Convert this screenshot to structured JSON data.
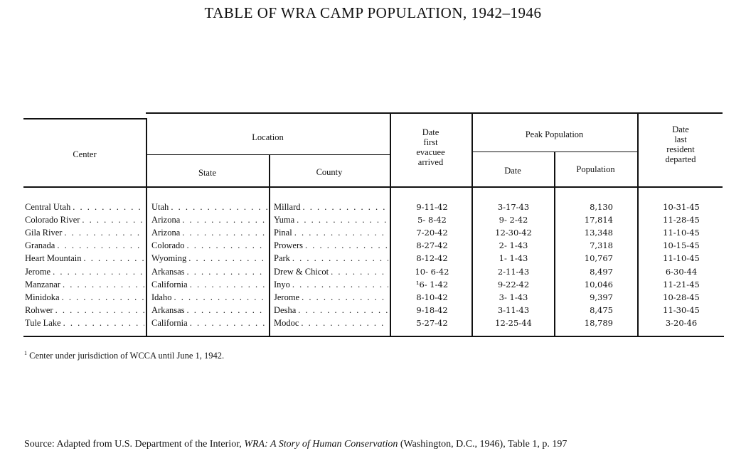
{
  "document": {
    "title": "TABLE OF WRA CAMP POPULATION, 1942–1946"
  },
  "table": {
    "headers": {
      "center": "Center",
      "location": "Location",
      "state": "State",
      "county": "County",
      "date_first_line1": "Date",
      "date_first_line2": "first",
      "date_first_line3": "evacuee",
      "date_first_line4": "arrived",
      "peak_population": "Peak Population",
      "peak_date": "Date",
      "peak_pop": "Population",
      "date_last_line1": "Date",
      "date_last_line2": "last",
      "date_last_line3": "resident",
      "date_last_line4": "departed"
    },
    "rows": [
      {
        "center": "Central Utah",
        "state": "Utah",
        "county": "Millard",
        "first": "9-11-42",
        "peak_date": "3-17-43",
        "peak_pop": "8,130",
        "last": "10-31-45"
      },
      {
        "center": "Colorado River",
        "state": "Arizona",
        "county": "Yuma",
        "first": "5- 8-42",
        "peak_date": "9- 2-42",
        "peak_pop": "17,814",
        "last": "11-28-45"
      },
      {
        "center": "Gila River",
        "state": "Arizona",
        "county": "Pinal",
        "first": "7-20-42",
        "peak_date": "12-30-42",
        "peak_pop": "13,348",
        "last": "11-10-45"
      },
      {
        "center": "Granada",
        "state": "Colorado",
        "county": "Prowers",
        "first": "8-27-42",
        "peak_date": "2- 1-43",
        "peak_pop": "7,318",
        "last": "10-15-45"
      },
      {
        "center": "Heart Mountain",
        "state": "Wyoming",
        "county": "Park",
        "first": "8-12-42",
        "peak_date": "1- 1-43",
        "peak_pop": "10,767",
        "last": "11-10-45"
      },
      {
        "center": "Jerome",
        "state": "Arkansas",
        "county": "Drew & Chicot",
        "first": "10- 6-42",
        "peak_date": "2-11-43",
        "peak_pop": "8,497",
        "last": "6-30-44"
      },
      {
        "center": "Manzanar",
        "state": "California",
        "county": "Inyo",
        "first": "¹6- 1-42",
        "peak_date": "9-22-42",
        "peak_pop": "10,046",
        "last": "11-21-45"
      },
      {
        "center": "Minidoka",
        "state": "Idaho",
        "county": "Jerome",
        "first": "8-10-42",
        "peak_date": "3- 1-43",
        "peak_pop": "9,397",
        "last": "10-28-45"
      },
      {
        "center": "Rohwer",
        "state": "Arkansas",
        "county": "Desha",
        "first": "9-18-42",
        "peak_date": "3-11-43",
        "peak_pop": "8,475",
        "last": "11-30-45"
      },
      {
        "center": "Tule Lake",
        "state": "California",
        "county": "Modoc",
        "first": "5-27-42",
        "peak_date": "12-25-44",
        "peak_pop": "18,789",
        "last": "3-20-46"
      }
    ]
  },
  "footnote": {
    "marker": "1",
    "text": "Center under jurisdiction of WCCA until June 1, 1942."
  },
  "source": {
    "prefix": "Source: Adapted from U.S. Department of the Interior, ",
    "title": "WRA: A Story of Human Conservation",
    "suffix": " (Washington, D.C., 1946), Table 1, p. 197"
  }
}
